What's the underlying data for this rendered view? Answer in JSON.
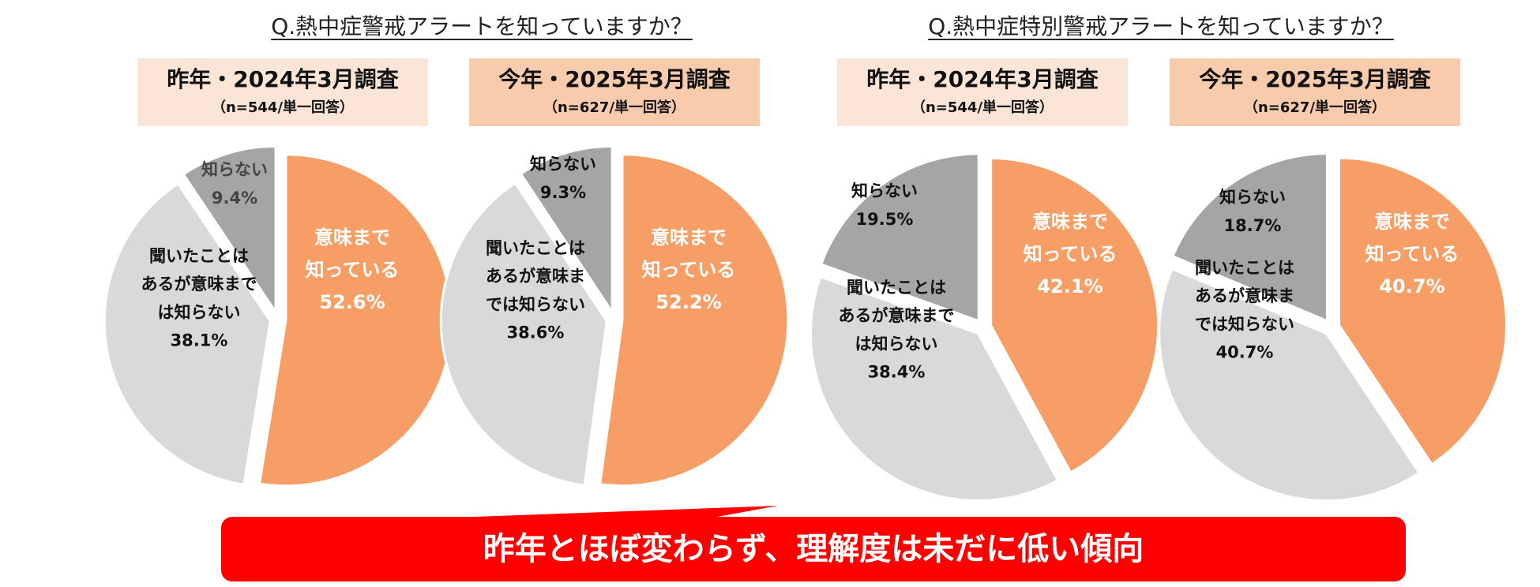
{
  "questions": {
    "q1": "Q.熱中症警戒アラートを知っていますか？",
    "q2": "Q.熱中症特別警戒アラートを知っていますか？"
  },
  "headers": [
    {
      "title": "昨年・2024年3月調査",
      "sub": "（n=544/単一回答）"
    },
    {
      "title": "今年・2025年3月調査",
      "sub": "（n=627/単一回答）"
    },
    {
      "title": "昨年・2024年3月調査",
      "sub": "（n=544/単一回答）"
    },
    {
      "title": "今年・2025年3月調査",
      "sub": "（n=627/単一回答）"
    }
  ],
  "colors": {
    "know_meaning": "#f79e66",
    "heard_only": "#d9d9d9",
    "dont_know": "#a5a5a5",
    "banner": "#ff0000",
    "header_last": "#fbe5d6",
    "header_cur": "#f8cbad"
  },
  "chart_data": [
    {
      "type": "pie",
      "question": "Q.熱中症警戒アラートを知っていますか？",
      "survey": "昨年・2024年3月調査",
      "slices": [
        {
          "label": "意味まで知っている",
          "value": 52.6
        },
        {
          "label": "聞いたことはあるが意味までは知らない",
          "value": 38.1
        },
        {
          "label": "知らない",
          "value": 9.4
        }
      ]
    },
    {
      "type": "pie",
      "question": "Q.熱中症警戒アラートを知っていますか？",
      "survey": "今年・2025年3月調査",
      "slices": [
        {
          "label": "意味まで知っている",
          "value": 52.2
        },
        {
          "label": "聞いたことはあるが意味までは知らない",
          "value": 38.6
        },
        {
          "label": "知らない",
          "value": 9.3
        }
      ]
    },
    {
      "type": "pie",
      "question": "Q.熱中症特別警戒アラートを知っていますか？",
      "survey": "昨年・2024年3月調査",
      "slices": [
        {
          "label": "意味まで知っている",
          "value": 42.1
        },
        {
          "label": "聞いたことはあるが意味までは知らない",
          "value": 38.4
        },
        {
          "label": "知らない",
          "value": 19.5
        }
      ]
    },
    {
      "type": "pie",
      "question": "Q.熱中症特別警戒アラートを知っていますか？",
      "survey": "今年・2025年3月調査",
      "slices": [
        {
          "label": "意味まで知っている",
          "value": 40.7
        },
        {
          "label": "聞いたことはあるが意味までは知らない",
          "value": 40.7
        },
        {
          "label": "知らない",
          "value": 18.7
        }
      ]
    }
  ],
  "pie_labels": [
    [
      [
        "意味まで",
        "知っている",
        "52.6%"
      ],
      [
        "聞いたことは",
        "あるが意味まで",
        "は知らない",
        "38.1%"
      ],
      [
        "知らない",
        "9.4%"
      ]
    ],
    [
      [
        "意味まで",
        "知っている",
        "52.2%"
      ],
      [
        "聞いたことは",
        "あるが意味ま",
        "では知らない",
        "38.6%"
      ],
      [
        "知らない",
        "9.3%"
      ]
    ],
    [
      [
        "意味まで",
        "知っている",
        "42.1%"
      ],
      [
        "聞いたことは",
        "あるが意味まで",
        "は知らない",
        "38.4%"
      ],
      [
        "知らない",
        "19.5%"
      ]
    ],
    [
      [
        "意味まで",
        "知っている",
        "40.7%"
      ],
      [
        "聞いたことは",
        "あるが意味ま",
        "では知らない",
        "40.7%"
      ],
      [
        "知らない",
        "18.7%"
      ]
    ]
  ],
  "banner": {
    "text": "昨年とほぼ変わらず、理解度は未だに低い傾向"
  }
}
